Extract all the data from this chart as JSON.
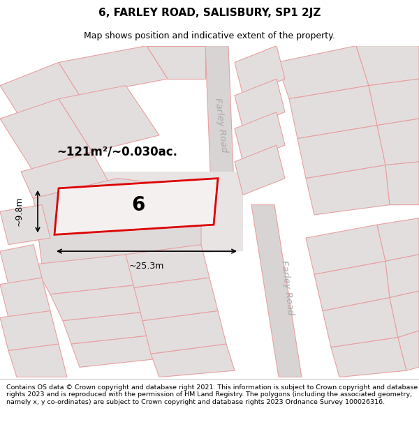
{
  "title": "6, FARLEY ROAD, SALISBURY, SP1 2JZ",
  "subtitle": "Map shows position and indicative extent of the property.",
  "footer": "Contains OS data © Crown copyright and database right 2021. This information is subject to Crown copyright and database rights 2023 and is reproduced with the permission of HM Land Registry. The polygons (including the associated geometry, namely x, y co-ordinates) are subject to Crown copyright and database rights 2023 Ordnance Survey 100026316.",
  "bg_color": "#f2eded",
  "building_fill": "#e2dede",
  "line_color": "#e8a0a0",
  "highlight_fill": "#f5f0f0",
  "highlight_edge": "#dd0000",
  "area_text": "~121m²/~0.030ac.",
  "plot_number": "6",
  "dim_width": "~25.3m",
  "dim_height": "~9.8m",
  "road_label_1": "Farley Road",
  "road_label_2": "Farley Road",
  "title_fontsize": 11,
  "subtitle_fontsize": 9,
  "footer_fontsize": 6.8
}
